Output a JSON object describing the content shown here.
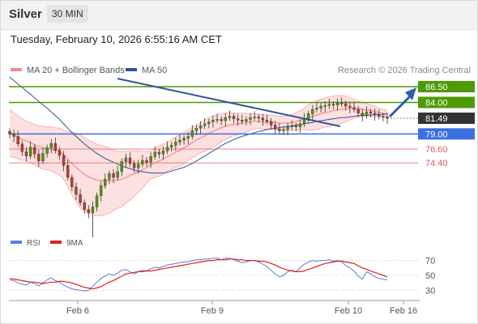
{
  "header": {
    "title": "Silver",
    "interval": "30 MIN",
    "datetime": "Tuesday, February 10, 2026 6:55:16 AM CET"
  },
  "legend": {
    "items": [
      {
        "label": "MA 20 + Bollinger Bands",
        "color": "#f08a8a"
      },
      {
        "label": "MA 50",
        "color": "#2f5597"
      }
    ],
    "credit": "Research © 2026 Trading Central"
  },
  "rsi_legend": {
    "items": [
      {
        "label": "RSI",
        "color": "#5b7fd6"
      },
      {
        "label": "9MA",
        "color": "#e02020"
      }
    ]
  },
  "colors": {
    "resistance": "#4e9a06",
    "support_main": "#3b6fe0",
    "support": "#e05a5a",
    "current": "#333333",
    "arrow": "#2f5fb0",
    "trendline": "#2f5597",
    "band_fill": "#fde0e0",
    "candle_up": "#4e9a06",
    "candle_down": "#c0392b"
  },
  "chart_data": [
    {
      "type": "line",
      "title": "Silver",
      "xlabel": "",
      "ylabel": "",
      "ylim": [
        60,
        95
      ],
      "x_ticks": [
        "Feb 6",
        "Feb 9",
        "Feb 10",
        "Feb 16"
      ],
      "levels": [
        {
          "label": "86.50",
          "value": 86.5,
          "kind": "resistance"
        },
        {
          "label": "84.00",
          "value": 84.0,
          "kind": "resistance"
        },
        {
          "label": "81.49",
          "value": 81.49,
          "kind": "current"
        },
        {
          "label": "79.00",
          "value": 79.0,
          "kind": "support_main"
        },
        {
          "label": "76.60",
          "value": 76.6,
          "kind": "support"
        },
        {
          "label": "74.40",
          "value": 74.4,
          "kind": "support"
        }
      ],
      "close": [
        79.0,
        78.6,
        77.4,
        76.2,
        75.5,
        76.9,
        75.8,
        74.7,
        75.9,
        76.8,
        77.5,
        76.4,
        75.6,
        74.0,
        72.1,
        70.6,
        69.4,
        68.1,
        67.0,
        66.5,
        67.4,
        69.2,
        70.8,
        71.8,
        72.7,
        72.1,
        73.0,
        74.6,
        75.2,
        74.3,
        73.6,
        74.2,
        74.8,
        74.5,
        75.4,
        76.1,
        75.8,
        76.3,
        76.9,
        77.2,
        77.7,
        78.0,
        78.3,
        78.6,
        79.5,
        79.9,
        80.3,
        80.6,
        80.9,
        81.2,
        81.3,
        81.1,
        81.6,
        81.8,
        81.4,
        81.2,
        81.0,
        81.3,
        81.6,
        81.7,
        81.5,
        81.2,
        81.0,
        80.4,
        79.8,
        79.5,
        79.7,
        80.1,
        80.3,
        80.1,
        80.6,
        81.4,
        82.2,
        82.9,
        83.1,
        83.4,
        83.5,
        83.7,
        83.6,
        83.9,
        83.8,
        83.4,
        83.2,
        82.9,
        82.3,
        81.9,
        82.5,
        82.3,
        82.0,
        81.8,
        81.7,
        81.49
      ],
      "series": [
        {
          "name": "MA 20 + Bollinger Bands",
          "upper": [
            83.0,
            82.3,
            81.9,
            81.4,
            81.0,
            80.8,
            80.5,
            80.3,
            80.2,
            80.1,
            80.1,
            80.0,
            79.9,
            79.6,
            79.4,
            79.3,
            79.1,
            79.0,
            78.4,
            78.0,
            77.7,
            77.4,
            77.2,
            77.0,
            76.8,
            76.4,
            76.2,
            76.2,
            76.2,
            76.3,
            76.3,
            76.3,
            76.2,
            76.2,
            76.3,
            76.7,
            77.1,
            77.4,
            77.7,
            78.1,
            78.5,
            78.9,
            79.3,
            79.6,
            80.0,
            80.4,
            80.8,
            81.2,
            81.6,
            81.9,
            82.1,
            82.2,
            82.3,
            82.4,
            82.3,
            82.3,
            82.3,
            82.3,
            82.2,
            82.2,
            82.1,
            82.1,
            82.0,
            82.0,
            81.9,
            81.8,
            81.8,
            81.9,
            82.1,
            82.4,
            82.7,
            83.1,
            83.6,
            84.0,
            84.3,
            84.5,
            84.7,
            84.9,
            85.0,
            85.1,
            85.1,
            85.0,
            84.8,
            84.5,
            84.2,
            84.0,
            83.8,
            83.6,
            83.4,
            83.1,
            82.9,
            82.7
          ],
          "ma20": [
            79.2,
            78.8,
            78.5,
            78.1,
            77.9,
            77.6,
            77.3,
            77.0,
            76.8,
            76.7,
            76.6,
            76.4,
            76.2,
            75.7,
            75.0,
            74.3,
            73.7,
            73.1,
            72.6,
            72.2,
            71.9,
            71.7,
            71.6,
            71.6,
            71.6,
            71.6,
            71.7,
            71.8,
            72.1,
            72.4,
            72.7,
            73.0,
            73.3,
            73.7,
            74.1,
            74.4,
            74.7,
            75.0,
            75.4,
            75.7,
            76.1,
            76.4,
            76.8,
            77.2,
            77.6,
            78.0,
            78.4,
            78.7,
            79.1,
            79.4,
            79.7,
            80.0,
            80.2,
            80.4,
            80.5,
            80.6,
            80.7,
            80.8,
            80.9,
            81.0,
            81.0,
            80.9,
            80.9,
            80.9,
            80.8,
            80.7,
            80.7,
            80.7,
            80.8,
            81.0,
            81.2,
            81.4,
            81.6,
            81.8,
            82.0,
            82.2,
            82.4,
            82.5,
            82.7,
            82.8,
            82.9,
            83.0,
            83.0,
            83.0,
            83.0,
            82.9,
            82.8,
            82.7,
            82.6,
            82.4,
            82.3,
            82.1
          ],
          "lower": [
            75.4,
            75.3,
            75.1,
            74.8,
            74.8,
            74.4,
            74.1,
            73.7,
            73.4,
            73.3,
            73.1,
            72.8,
            72.5,
            71.8,
            70.6,
            69.3,
            68.3,
            67.2,
            66.8,
            66.4,
            66.1,
            66.0,
            66.0,
            66.2,
            66.4,
            66.8,
            67.2,
            67.4,
            68.0,
            68.5,
            69.1,
            69.7,
            70.4,
            71.2,
            71.9,
            72.1,
            72.3,
            72.6,
            73.1,
            73.3,
            73.7,
            73.9,
            74.3,
            74.8,
            75.2,
            75.6,
            76.0,
            76.2,
            76.6,
            76.9,
            77.3,
            77.8,
            78.1,
            78.4,
            78.7,
            78.9,
            79.1,
            79.3,
            79.6,
            79.8,
            79.9,
            79.7,
            79.8,
            79.8,
            79.7,
            79.6,
            79.6,
            79.5,
            79.5,
            79.6,
            79.7,
            79.7,
            79.6,
            79.6,
            79.7,
            79.9,
            80.1,
            80.1,
            80.4,
            80.5,
            80.7,
            81.0,
            81.2,
            81.5,
            81.8,
            81.8,
            81.8,
            81.8,
            81.8,
            81.7,
            81.7,
            81.5
          ]
        },
        {
          "name": "MA 50",
          "values": [
            88.0,
            87.5,
            86.9,
            86.4,
            85.8,
            85.3,
            84.7,
            84.2,
            83.6,
            83.1,
            82.5,
            81.9,
            81.3,
            80.6,
            79.9,
            79.2,
            78.6,
            78.0,
            77.4,
            76.9,
            76.4,
            75.9,
            75.5,
            75.1,
            74.8,
            74.5,
            74.2,
            73.9,
            73.7,
            73.5,
            73.3,
            73.1,
            73.0,
            72.9,
            72.8,
            72.8,
            72.8,
            72.8,
            72.9,
            73.1,
            73.3,
            73.5,
            73.7,
            74.0,
            74.3,
            74.7,
            75.1,
            75.5,
            75.9,
            76.3,
            76.7,
            77.1,
            77.5,
            77.8,
            78.1,
            78.4,
            78.6,
            78.8,
            79.0,
            79.2,
            79.4,
            79.5,
            79.7,
            79.8,
            79.9,
            80.0,
            80.1,
            80.2,
            80.3,
            80.4,
            80.5,
            80.6,
            80.7,
            80.8,
            81.0,
            81.1,
            81.2,
            81.3,
            81.4,
            81.5,
            81.6,
            81.6,
            81.7,
            81.8,
            81.9,
            81.9,
            82.0,
            82.0,
            82.1,
            82.1,
            82.1,
            82.2
          ]
        }
      ],
      "annotations": [
        "downtrend line (broken)",
        "upward arrow toward 86.50"
      ]
    },
    {
      "type": "line",
      "title": "RSI",
      "ylim": [
        20,
        80
      ],
      "y_ticks": [
        70,
        50,
        30
      ],
      "series": [
        {
          "name": "RSI",
          "values": [
            44,
            43,
            40,
            38,
            37,
            41,
            39,
            36,
            40,
            44,
            47,
            43,
            41,
            37,
            34,
            32,
            31,
            30,
            29,
            30,
            35,
            41,
            46,
            49,
            52,
            50,
            53,
            57,
            58,
            55,
            52,
            55,
            57,
            56,
            59,
            61,
            60,
            62,
            64,
            65,
            66,
            67,
            68,
            68,
            70,
            71,
            71,
            72,
            72,
            73,
            73,
            71,
            73,
            73,
            71,
            69,
            67,
            68,
            70,
            70,
            68,
            65,
            62,
            57,
            52,
            48,
            50,
            55,
            57,
            55,
            60,
            65,
            68,
            70,
            69,
            70,
            70,
            71,
            69,
            70,
            68,
            63,
            60,
            56,
            49,
            45,
            55,
            52,
            48,
            46,
            45,
            44
          ]
        },
        {
          "name": "9MA",
          "values": [
            46,
            45,
            44,
            43,
            42,
            41,
            41,
            40,
            39,
            40,
            41,
            41,
            42,
            42,
            41,
            40,
            38,
            36,
            34,
            33,
            32,
            33,
            35,
            38,
            41,
            43,
            46,
            49,
            52,
            53,
            54,
            55,
            55,
            56,
            56,
            57,
            58,
            59,
            60,
            61,
            62,
            63,
            64,
            65,
            66,
            67,
            68,
            69,
            70,
            70,
            71,
            71,
            71,
            72,
            72,
            71,
            71,
            70,
            70,
            70,
            69,
            69,
            68,
            66,
            64,
            61,
            59,
            57,
            56,
            55,
            55,
            56,
            58,
            60,
            62,
            64,
            66,
            67,
            68,
            69,
            69,
            68,
            67,
            66,
            63,
            60,
            58,
            56,
            54,
            52,
            50,
            48
          ]
        }
      ]
    }
  ]
}
